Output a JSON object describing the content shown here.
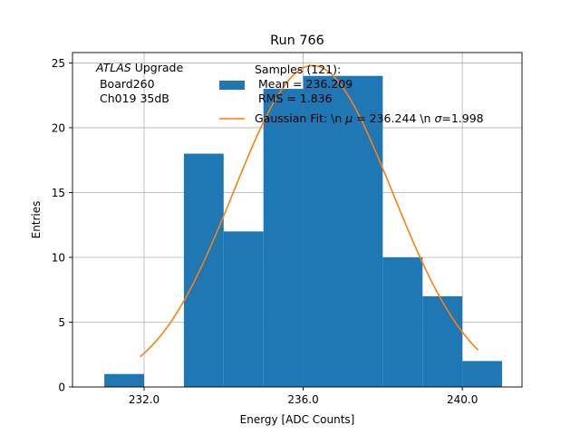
{
  "chart_data": {
    "type": "bar",
    "title": "Run 766",
    "xlabel": "Energy [ADC Counts]",
    "ylabel": "Entries",
    "xlim": [
      230.2,
      241.5
    ],
    "ylim": [
      0,
      25.8
    ],
    "grid": true,
    "xticks": [
      {
        "value": 232,
        "label": "232.0"
      },
      {
        "value": 236,
        "label": "236.0"
      },
      {
        "value": 240,
        "label": "240.0"
      }
    ],
    "yticks": [
      {
        "value": 0,
        "label": "0"
      },
      {
        "value": 5,
        "label": "5"
      },
      {
        "value": 10,
        "label": "10"
      },
      {
        "value": 15,
        "label": "15"
      },
      {
        "value": 20,
        "label": "20"
      },
      {
        "value": 25,
        "label": "25"
      }
    ],
    "annotation": {
      "line1_italic": "ATLAS",
      "line1_rest": " Upgrade",
      "line2": " Board260",
      "line3": " Ch019 35dB"
    },
    "histogram": {
      "color": "#1f77b4",
      "bins": [
        {
          "x0": 231,
          "x1": 232,
          "count": 1
        },
        {
          "x0": 232,
          "x1": 233,
          "count": 0
        },
        {
          "x0": 233,
          "x1": 234,
          "count": 18
        },
        {
          "x0": 234,
          "x1": 235,
          "count": 12
        },
        {
          "x0": 235,
          "x1": 236,
          "count": 23
        },
        {
          "x0": 236,
          "x1": 237,
          "count": 24
        },
        {
          "x0": 237,
          "x1": 238,
          "count": 24
        },
        {
          "x0": 238,
          "x1": 239,
          "count": 10
        },
        {
          "x0": 239,
          "x1": 240,
          "count": 7
        },
        {
          "x0": 240,
          "x1": 241,
          "count": 2
        }
      ]
    },
    "fit": {
      "color": "#ff7f0e",
      "mu": 236.244,
      "sigma": 1.998,
      "amplitude": 24.8,
      "x_range": [
        231.9,
        240.4
      ]
    },
    "legend": {
      "placement": "top-right",
      "hist_lines": [
        "Samples (121):",
        " Mean = 236.209",
        " RMS = 1.836"
      ],
      "fit_prefix": "Gaussian Fit: \\n ",
      "fit_mu_symbol": "μ",
      "fit_mid": " = 236.244 \\n ",
      "fit_sigma_symbol": "σ",
      "fit_suffix": "=1.998"
    }
  }
}
